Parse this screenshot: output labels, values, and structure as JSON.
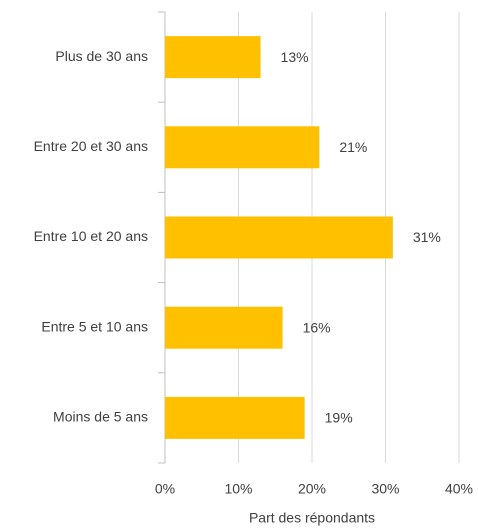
{
  "chart_data": {
    "type": "barh",
    "categories": [
      "Plus de 30 ans",
      "Entre 20 et 30 ans",
      "Entre 10 et 20 ans",
      "Entre 5 et 10 ans",
      "Moins de 5 ans"
    ],
    "values": [
      13,
      21,
      31,
      16,
      19
    ],
    "value_labels": [
      "13%",
      "21%",
      "31%",
      "16%",
      "19%"
    ],
    "color": "#FFC000",
    "xlabel": "Part des répondants",
    "xlim": [
      0,
      40
    ],
    "xticks": [
      {
        "value": 0,
        "label": "0%"
      },
      {
        "value": 10,
        "label": "10%"
      },
      {
        "value": 20,
        "label": "20%"
      },
      {
        "value": 30,
        "label": "30%"
      },
      {
        "value": 40,
        "label": "40%"
      }
    ],
    "grid": true
  }
}
